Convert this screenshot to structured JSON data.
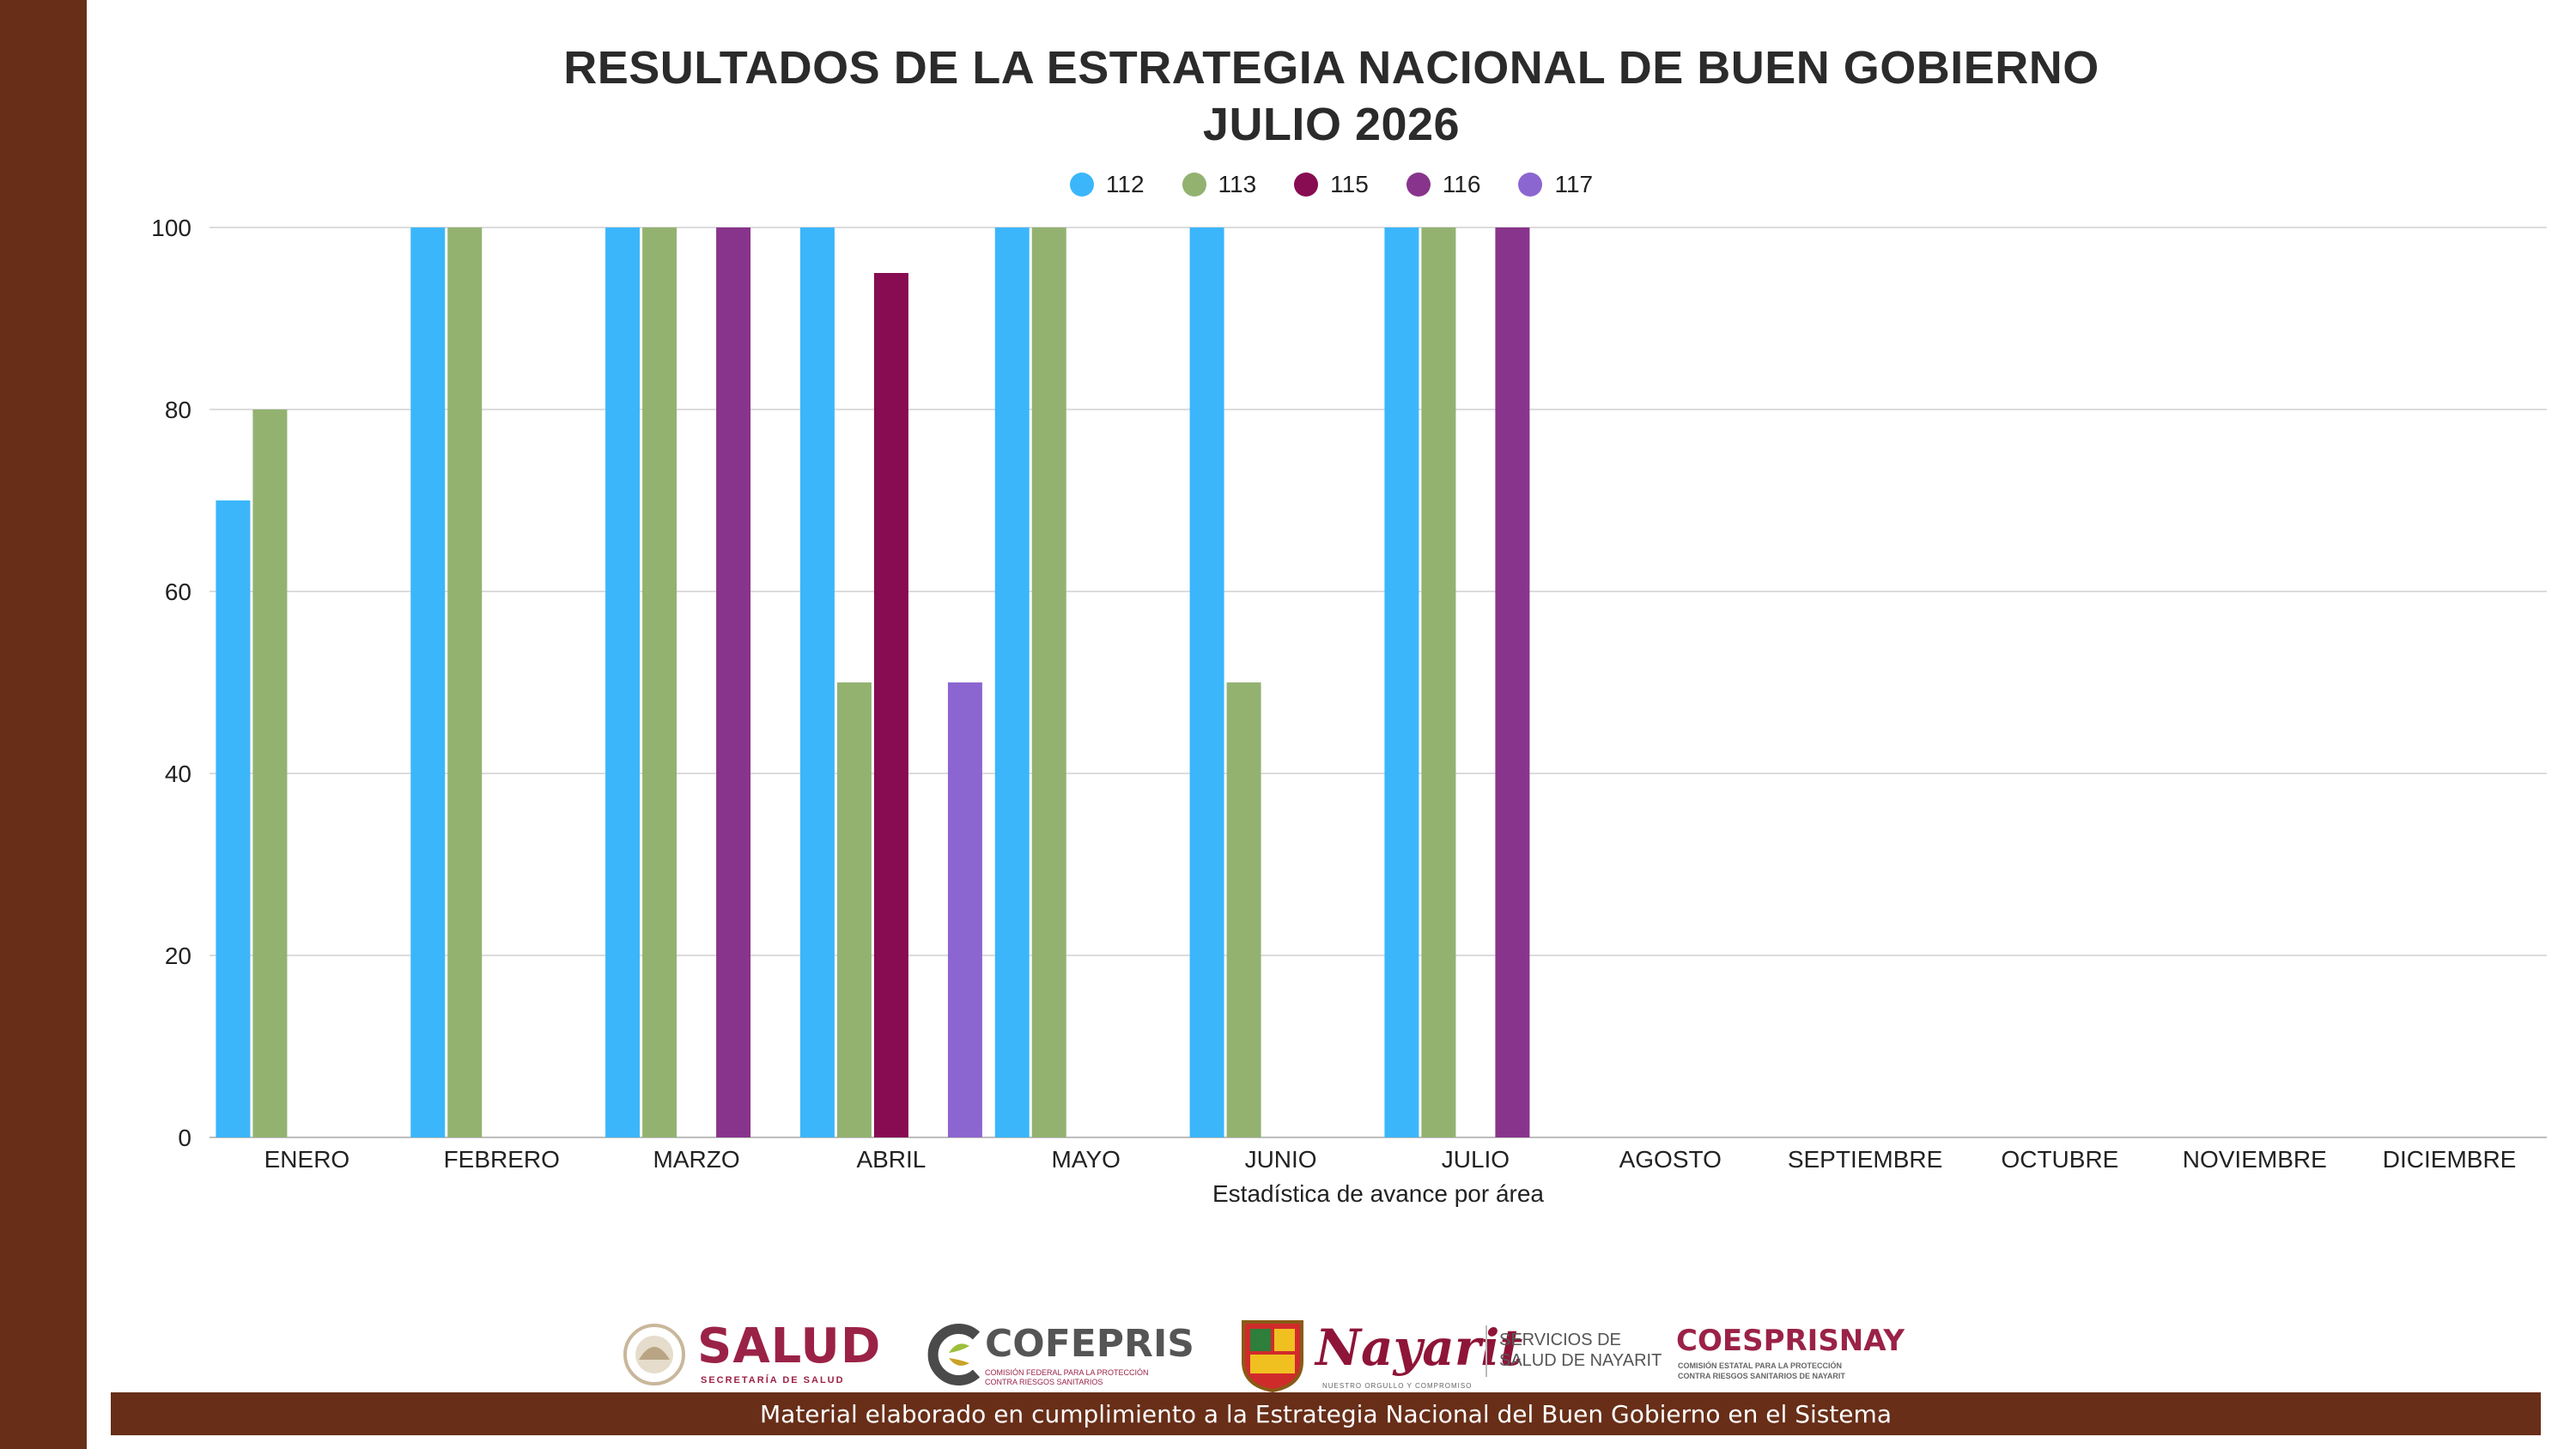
{
  "page": {
    "title_line1": "RESULTADOS DE LA ESTRATEGIA NACIONAL DE BUEN GOBIERNO",
    "title_line2": "JULIO 2026",
    "footer_text": "Material elaborado en cumplimiento a la Estrategia Nacional  del Buen Gobierno en el Sistema",
    "sidebar_color": "#682e18"
  },
  "logos": {
    "salud": {
      "main": "SALUD",
      "sub": "SECRETARÍA DE SALUD"
    },
    "cofepris": {
      "main": "COFEPRIS",
      "sub": "COMISIÓN FEDERAL PARA LA PROTECCIÓN CONTRA RIESGOS SANITARIOS"
    },
    "nayarit": {
      "main": "Nayarit",
      "sub": "NUESTRO ORGULLO Y COMPROMISO",
      "side1": "SERVICIOS DE",
      "side2": "SALUD DE NAYARIT"
    },
    "coesprisnay": {
      "main": "COESPRISNAY",
      "sub1": "COMISIÓN ESTATAL PARA LA PROTECCIÓN",
      "sub2": "CONTRA RIESGOS SANITARIOS DE NAYARIT"
    }
  },
  "chart_data": {
    "type": "bar",
    "xlabel": "Estadística de avance por área",
    "ylabel": "",
    "ylim": [
      0,
      100
    ],
    "yticks": [
      0,
      20,
      40,
      60,
      80,
      100
    ],
    "grid": true,
    "legend_position": "top-center",
    "categories": [
      "ENERO",
      "FEBRERO",
      "MARZO",
      "ABRIL",
      "MAYO",
      "JUNIO",
      "JULIO",
      "AGOSTO",
      "SEPTIEMBRE",
      "OCTUBRE",
      "NOVIEMBRE",
      "DICIEMBRE"
    ],
    "series": [
      {
        "name": "112",
        "color": "#3bb6fb",
        "values": [
          70,
          100,
          100,
          100,
          100,
          100,
          100,
          null,
          null,
          null,
          null,
          null
        ]
      },
      {
        "name": "113",
        "color": "#93b270",
        "values": [
          80,
          100,
          100,
          50,
          100,
          50,
          100,
          null,
          null,
          null,
          null,
          null
        ]
      },
      {
        "name": "115",
        "color": "#870c52",
        "values": [
          null,
          null,
          null,
          95,
          null,
          null,
          null,
          null,
          null,
          null,
          null,
          null
        ]
      },
      {
        "name": "116",
        "color": "#88348c",
        "values": [
          null,
          null,
          100,
          null,
          null,
          null,
          100,
          null,
          null,
          null,
          null,
          null
        ]
      },
      {
        "name": "117",
        "color": "#8c66d0",
        "values": [
          null,
          null,
          null,
          50,
          null,
          null,
          null,
          null,
          null,
          null,
          null,
          null
        ]
      }
    ]
  }
}
